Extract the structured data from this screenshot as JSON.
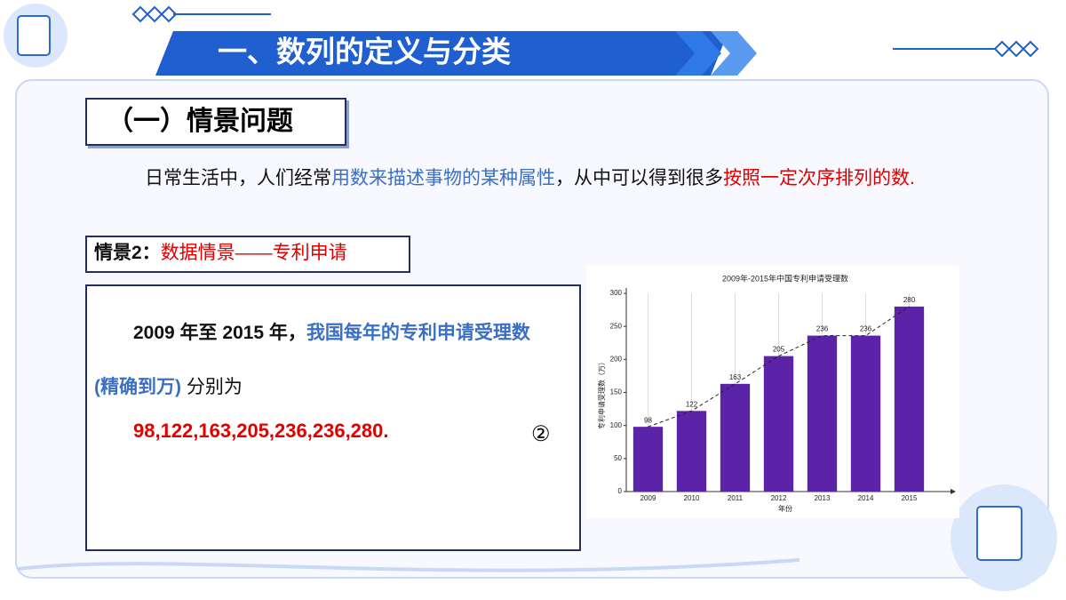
{
  "header": {
    "title": "一、数列的定义与分类"
  },
  "section": {
    "title": "（一）情景问题"
  },
  "intro": {
    "segments": [
      {
        "text": "日常生活中，人们经常",
        "color": "#111111"
      },
      {
        "text": "用数来描述事物的某种属性",
        "color": "#3a6fc4"
      },
      {
        "text": "，从中可以得到很多",
        "color": "#111111"
      },
      {
        "text": "按照一定次序排列的数.",
        "color": "#e00000"
      }
    ]
  },
  "scenario": {
    "segments": [
      {
        "text": "情景2：",
        "color": "#111111"
      },
      {
        "text": "数据情景——专利申请",
        "color": "#e00000"
      }
    ]
  },
  "box": {
    "segments": [
      {
        "text": "2009 年至 2015 年，",
        "color": "#111111"
      },
      {
        "text": "我国每年的专利申请受理数 (精确到万)",
        "color": "#3a6fc4"
      },
      {
        "text": " 分别为",
        "color": "#111111"
      }
    ],
    "sequence": {
      "text": "98,122,163,205,236,236,280.",
      "color": "#e00000"
    },
    "tag": "②"
  },
  "chart_data": {
    "type": "bar",
    "title": "2009年-2015年中国专利申请受理数",
    "x_label": "年份",
    "y_label": "专利申请受理数（万）",
    "categories": [
      "2009",
      "2010",
      "2011",
      "2012",
      "2013",
      "2014",
      "2015"
    ],
    "values": [
      98,
      122,
      163,
      205,
      236,
      236,
      280
    ],
    "color": "#5a23a8",
    "ylim": [
      0,
      300
    ],
    "yticks": [
      0,
      50,
      100,
      150,
      200,
      250,
      300
    ],
    "trend_line": true
  }
}
